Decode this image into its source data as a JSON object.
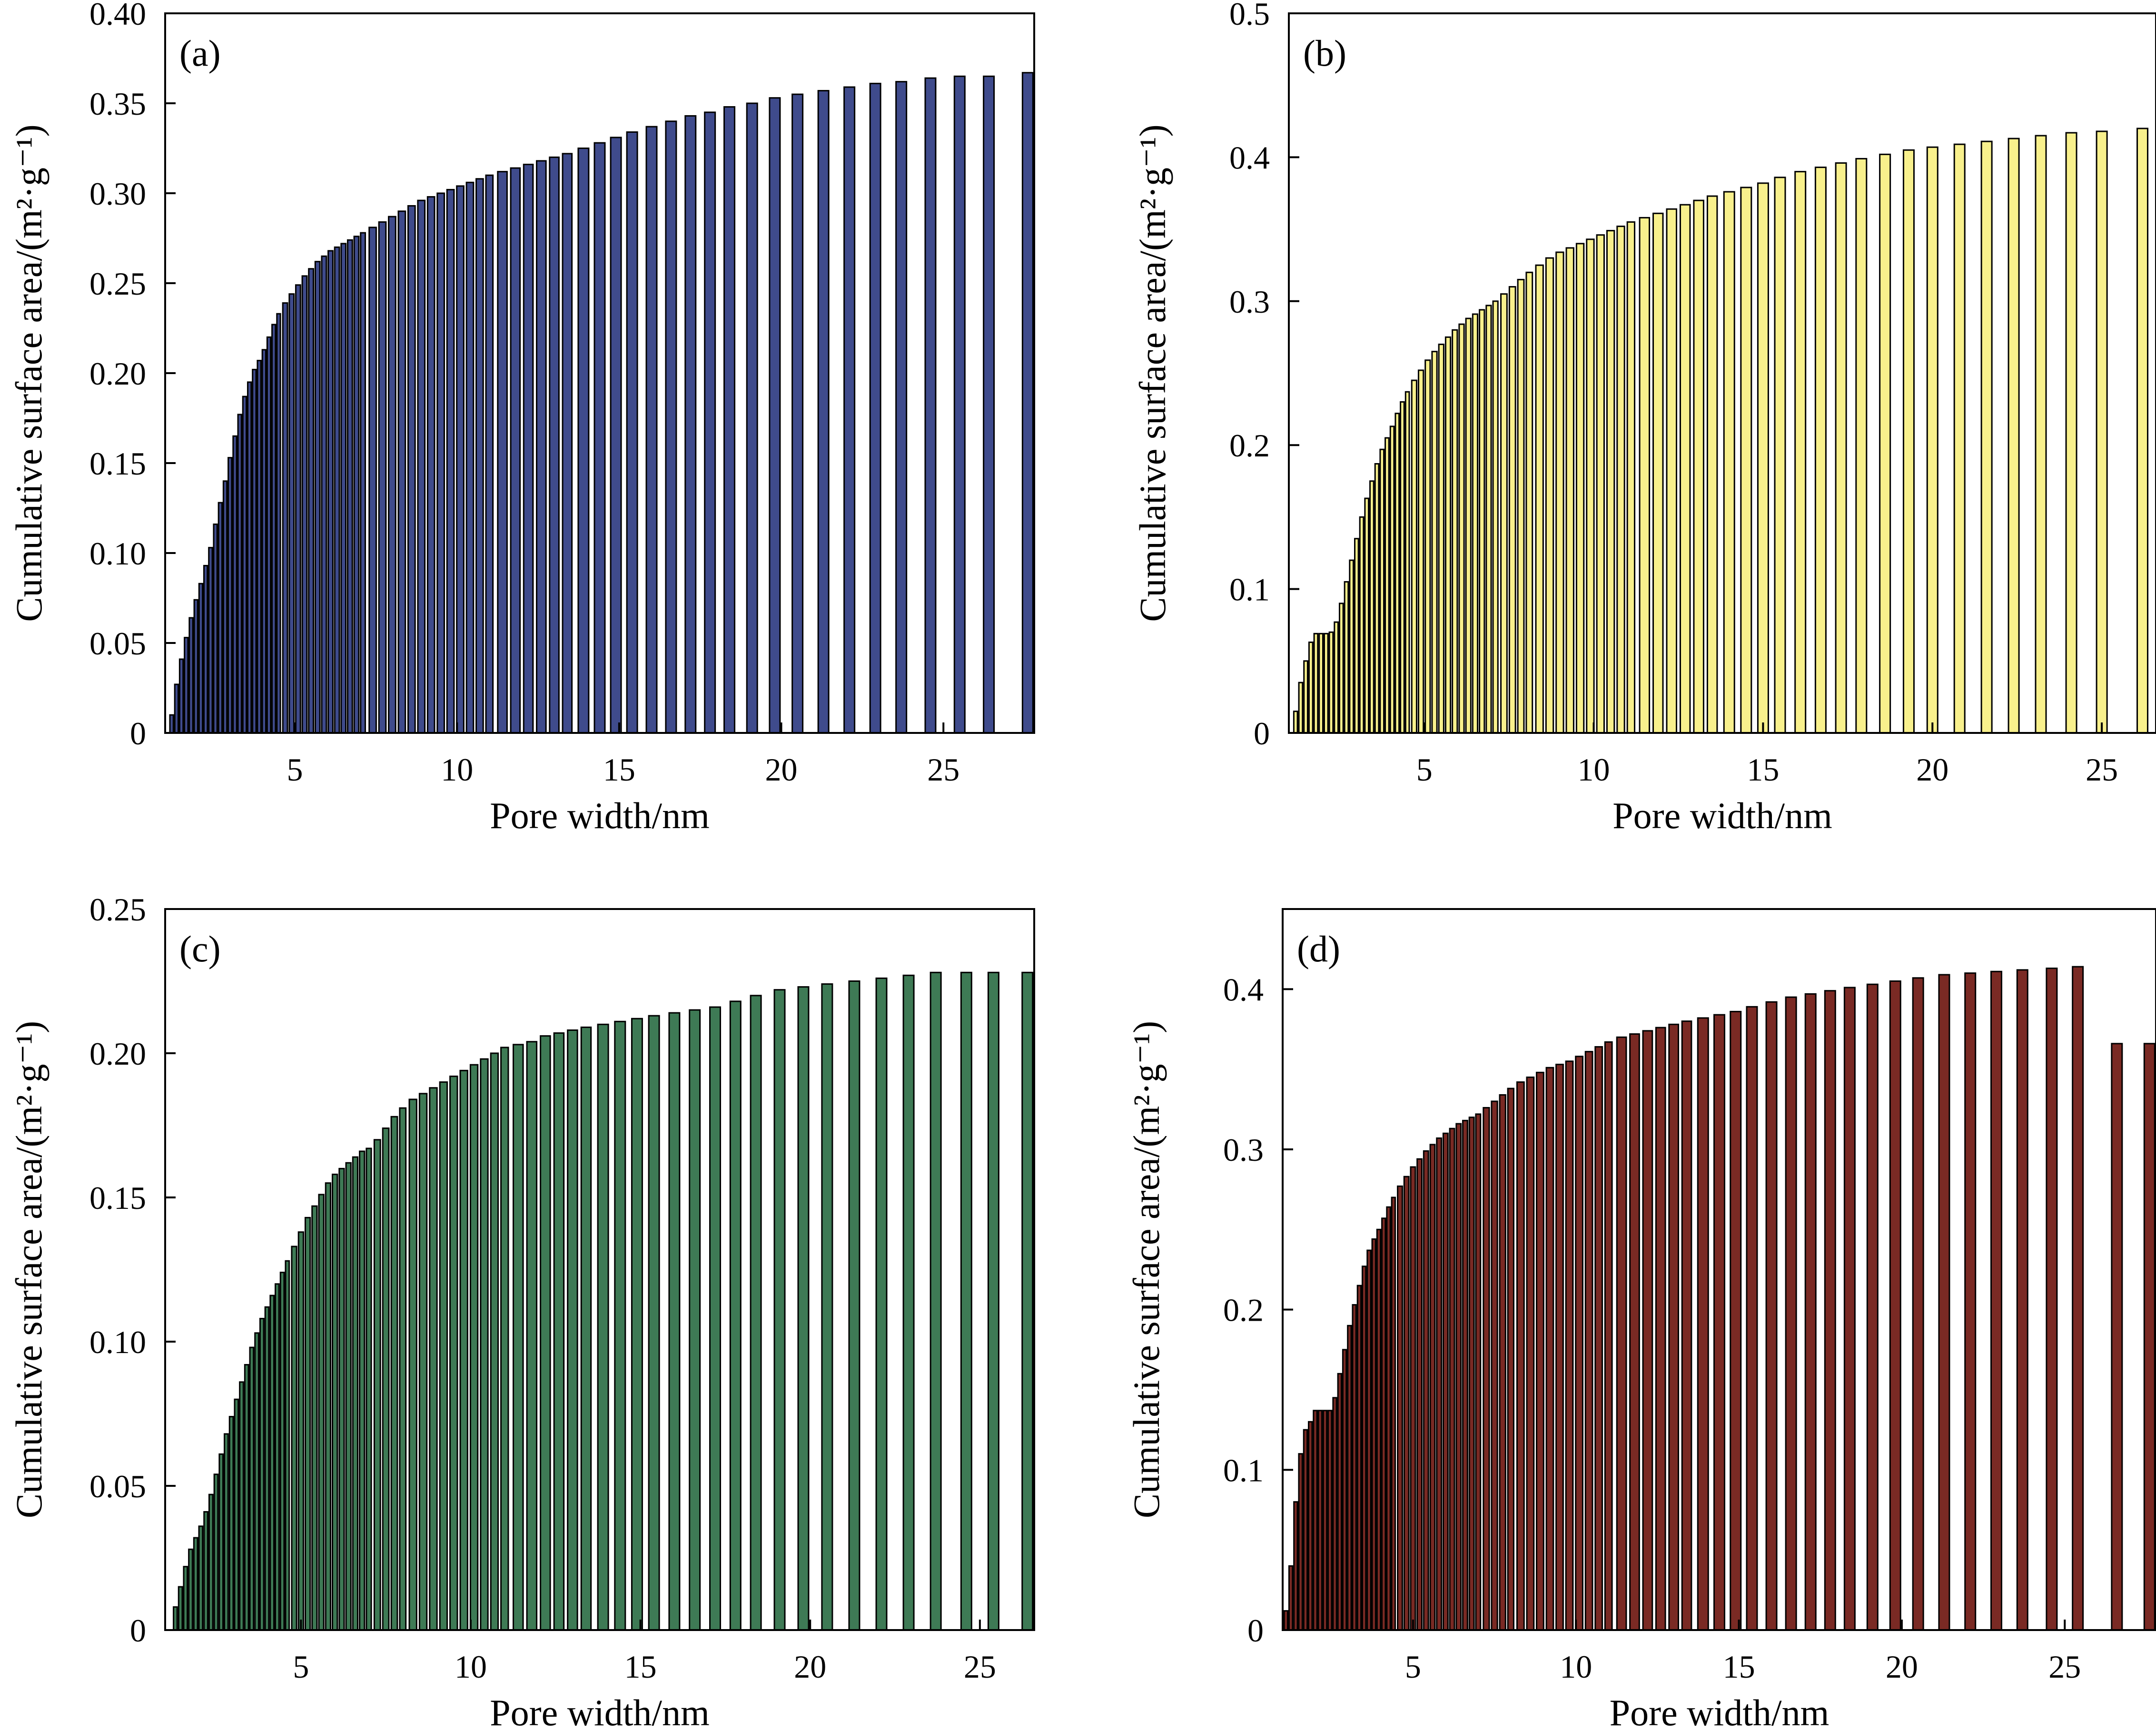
{
  "panels": [
    {
      "chart_data": {
        "type": "bar",
        "panel_label": "(a)",
        "xlabel": "Pore width/nm",
        "ylabel": "Cumulative surface area/(m²·g⁻¹)",
        "xlim": [
          1.0,
          27.8
        ],
        "ylim": [
          0,
          0.4
        ],
        "yticks": [
          0,
          0.05,
          0.1,
          0.15,
          0.2,
          0.25,
          0.3,
          0.35,
          0.4
        ],
        "ytick_labels": [
          "0",
          "0.05",
          "0.10",
          "0.15",
          "0.20",
          "0.25",
          "0.30",
          "0.35",
          "0.40"
        ],
        "xticks": [
          5,
          10,
          15,
          20,
          25
        ],
        "xtick_labels": [
          "5",
          "10",
          "15",
          "20",
          "25"
        ],
        "bar_color": "#3F4B8C",
        "x": [
          1.2,
          1.35,
          1.5,
          1.65,
          1.8,
          1.95,
          2.1,
          2.25,
          2.4,
          2.55,
          2.7,
          2.85,
          3.0,
          3.15,
          3.3,
          3.45,
          3.6,
          3.75,
          3.9,
          4.05,
          4.2,
          4.35,
          4.5,
          4.7,
          4.9,
          5.1,
          5.3,
          5.5,
          5.7,
          5.9,
          6.1,
          6.3,
          6.5,
          6.7,
          6.9,
          7.1,
          7.4,
          7.7,
          8.0,
          8.3,
          8.6,
          8.9,
          9.2,
          9.5,
          9.8,
          10.1,
          10.4,
          10.7,
          11.0,
          11.4,
          11.8,
          12.2,
          12.6,
          13.0,
          13.4,
          13.9,
          14.4,
          14.9,
          15.4,
          16.0,
          16.6,
          17.2,
          17.8,
          18.4,
          19.1,
          19.8,
          20.5,
          21.3,
          22.1,
          22.9,
          23.7,
          24.6,
          25.5,
          26.4,
          27.6
        ],
        "values": [
          0.01,
          0.027,
          0.041,
          0.053,
          0.064,
          0.074,
          0.083,
          0.093,
          0.103,
          0.116,
          0.128,
          0.14,
          0.153,
          0.165,
          0.177,
          0.187,
          0.195,
          0.202,
          0.207,
          0.213,
          0.22,
          0.227,
          0.233,
          0.239,
          0.244,
          0.249,
          0.254,
          0.258,
          0.262,
          0.265,
          0.268,
          0.27,
          0.272,
          0.274,
          0.276,
          0.278,
          0.281,
          0.284,
          0.287,
          0.29,
          0.293,
          0.296,
          0.298,
          0.3,
          0.302,
          0.304,
          0.306,
          0.308,
          0.31,
          0.312,
          0.314,
          0.316,
          0.318,
          0.32,
          0.322,
          0.325,
          0.328,
          0.331,
          0.334,
          0.337,
          0.34,
          0.343,
          0.345,
          0.348,
          0.35,
          0.353,
          0.355,
          0.357,
          0.359,
          0.361,
          0.362,
          0.364,
          0.365,
          0.365,
          0.367
        ]
      }
    },
    {
      "chart_data": {
        "type": "bar",
        "panel_label": "(b)",
        "xlabel": "Pore width/nm",
        "ylabel": "Cumulative surface area/(m²·g⁻¹)",
        "xlim": [
          1.0,
          26.6
        ],
        "ylim": [
          0,
          0.5
        ],
        "yticks": [
          0,
          0.1,
          0.2,
          0.3,
          0.4,
          0.5
        ],
        "ytick_labels": [
          "0",
          "0.1",
          "0.2",
          "0.3",
          "0.4",
          "0.5"
        ],
        "xticks": [
          5,
          10,
          15,
          20,
          25
        ],
        "xtick_labels": [
          "5",
          "10",
          "15",
          "20",
          "25"
        ],
        "bar_color": "#F8F08C",
        "x": [
          1.2,
          1.35,
          1.5,
          1.65,
          1.8,
          1.95,
          2.1,
          2.25,
          2.4,
          2.55,
          2.7,
          2.85,
          3.0,
          3.15,
          3.3,
          3.45,
          3.6,
          3.75,
          3.9,
          4.05,
          4.2,
          4.35,
          4.5,
          4.7,
          4.9,
          5.1,
          5.3,
          5.5,
          5.7,
          5.9,
          6.1,
          6.3,
          6.5,
          6.7,
          6.9,
          7.1,
          7.35,
          7.6,
          7.85,
          8.1,
          8.4,
          8.7,
          9.0,
          9.3,
          9.6,
          9.9,
          10.2,
          10.5,
          10.8,
          11.1,
          11.5,
          11.9,
          12.3,
          12.7,
          13.1,
          13.5,
          14.0,
          14.5,
          15.0,
          15.5,
          16.1,
          16.7,
          17.3,
          17.9,
          18.6,
          19.3,
          20.0,
          20.8,
          21.6,
          22.4,
          23.2,
          24.1,
          25.0,
          26.2
        ],
        "values": [
          0.015,
          0.035,
          0.05,
          0.063,
          0.069,
          0.069,
          0.069,
          0.07,
          0.077,
          0.09,
          0.105,
          0.12,
          0.135,
          0.15,
          0.163,
          0.175,
          0.187,
          0.197,
          0.205,
          0.213,
          0.222,
          0.23,
          0.237,
          0.245,
          0.252,
          0.259,
          0.265,
          0.27,
          0.275,
          0.28,
          0.284,
          0.288,
          0.291,
          0.294,
          0.297,
          0.3,
          0.305,
          0.31,
          0.315,
          0.32,
          0.325,
          0.33,
          0.334,
          0.337,
          0.34,
          0.343,
          0.346,
          0.349,
          0.352,
          0.355,
          0.358,
          0.361,
          0.364,
          0.367,
          0.37,
          0.373,
          0.376,
          0.379,
          0.382,
          0.386,
          0.39,
          0.393,
          0.396,
          0.399,
          0.402,
          0.405,
          0.407,
          0.409,
          0.411,
          0.413,
          0.415,
          0.417,
          0.418,
          0.42
        ]
      }
    },
    {
      "chart_data": {
        "type": "bar",
        "panel_label": "(c)",
        "xlabel": "Pore width/nm",
        "ylabel": "Cumulative surface area/(m²·g⁻¹)",
        "xlim": [
          1.0,
          26.6
        ],
        "ylim": [
          0,
          0.25
        ],
        "yticks": [
          0,
          0.05,
          0.1,
          0.15,
          0.2,
          0.25
        ],
        "ytick_labels": [
          "0",
          "0.05",
          "0.10",
          "0.15",
          "0.20",
          "0.25"
        ],
        "xticks": [
          5,
          10,
          15,
          20,
          25
        ],
        "xtick_labels": [
          "5",
          "10",
          "15",
          "20",
          "25"
        ],
        "bar_color": "#3E7A55",
        "x": [
          1.3,
          1.45,
          1.6,
          1.75,
          1.9,
          2.05,
          2.2,
          2.35,
          2.5,
          2.65,
          2.8,
          2.95,
          3.1,
          3.25,
          3.4,
          3.55,
          3.7,
          3.85,
          4.0,
          4.15,
          4.3,
          4.45,
          4.6,
          4.8,
          5.0,
          5.2,
          5.4,
          5.6,
          5.8,
          6.0,
          6.2,
          6.4,
          6.6,
          6.8,
          7.0,
          7.25,
          7.5,
          7.75,
          8.0,
          8.3,
          8.6,
          8.9,
          9.2,
          9.5,
          9.8,
          10.1,
          10.4,
          10.7,
          11.0,
          11.4,
          11.8,
          12.2,
          12.6,
          13.0,
          13.4,
          13.9,
          14.4,
          14.9,
          15.4,
          16.0,
          16.6,
          17.2,
          17.8,
          18.4,
          19.1,
          19.8,
          20.5,
          21.3,
          22.1,
          22.9,
          23.7,
          24.6,
          25.4,
          26.4
        ],
        "values": [
          0.008,
          0.015,
          0.022,
          0.028,
          0.032,
          0.036,
          0.041,
          0.047,
          0.054,
          0.061,
          0.068,
          0.074,
          0.08,
          0.086,
          0.092,
          0.098,
          0.103,
          0.108,
          0.112,
          0.116,
          0.12,
          0.124,
          0.128,
          0.133,
          0.138,
          0.143,
          0.147,
          0.151,
          0.155,
          0.158,
          0.16,
          0.162,
          0.164,
          0.166,
          0.167,
          0.17,
          0.174,
          0.178,
          0.181,
          0.184,
          0.186,
          0.188,
          0.19,
          0.192,
          0.194,
          0.196,
          0.198,
          0.2,
          0.202,
          0.203,
          0.204,
          0.206,
          0.207,
          0.208,
          0.209,
          0.21,
          0.211,
          0.212,
          0.213,
          0.214,
          0.215,
          0.216,
          0.218,
          0.22,
          0.222,
          0.223,
          0.224,
          0.225,
          0.226,
          0.227,
          0.228,
          0.228,
          0.228,
          0.228
        ]
      }
    },
    {
      "chart_data": {
        "type": "bar",
        "panel_label": "(d)",
        "xlabel": "Pore width/nm",
        "ylabel": "Cumulative surface area/(m²·g⁻¹)",
        "xlim": [
          1.0,
          27.8
        ],
        "ylim": [
          0,
          0.45
        ],
        "yticks": [
          0,
          0.1,
          0.2,
          0.3,
          0.4
        ],
        "ytick_labels": [
          "0",
          "0.1",
          "0.2",
          "0.3",
          "0.4"
        ],
        "xticks": [
          5,
          10,
          15,
          20,
          25
        ],
        "xtick_labels": [
          "5",
          "10",
          "15",
          "20",
          "25"
        ],
        "bar_color": "#7A2A24",
        "x": [
          1.1,
          1.25,
          1.4,
          1.55,
          1.7,
          1.85,
          2.0,
          2.15,
          2.3,
          2.45,
          2.6,
          2.75,
          2.9,
          3.05,
          3.2,
          3.35,
          3.5,
          3.65,
          3.8,
          3.95,
          4.1,
          4.25,
          4.4,
          4.6,
          4.8,
          5.0,
          5.2,
          5.4,
          5.6,
          5.8,
          6.0,
          6.2,
          6.4,
          6.6,
          6.8,
          7.0,
          7.25,
          7.5,
          7.75,
          8.0,
          8.3,
          8.6,
          8.9,
          9.2,
          9.5,
          9.8,
          10.1,
          10.4,
          10.7,
          11.0,
          11.4,
          11.8,
          12.2,
          12.6,
          13.0,
          13.4,
          13.9,
          14.4,
          14.9,
          15.4,
          16.0,
          16.6,
          17.2,
          17.8,
          18.4,
          19.1,
          19.8,
          20.5,
          21.3,
          22.1,
          22.9,
          23.7,
          24.6,
          25.4,
          26.6,
          27.6
        ],
        "values": [
          0.012,
          0.04,
          0.08,
          0.11,
          0.125,
          0.13,
          0.137,
          0.137,
          0.137,
          0.137,
          0.145,
          0.16,
          0.175,
          0.19,
          0.203,
          0.215,
          0.227,
          0.237,
          0.244,
          0.25,
          0.257,
          0.264,
          0.27,
          0.277,
          0.283,
          0.289,
          0.294,
          0.299,
          0.303,
          0.307,
          0.31,
          0.313,
          0.316,
          0.318,
          0.32,
          0.322,
          0.326,
          0.33,
          0.334,
          0.338,
          0.342,
          0.345,
          0.348,
          0.351,
          0.353,
          0.355,
          0.358,
          0.361,
          0.364,
          0.367,
          0.37,
          0.372,
          0.374,
          0.376,
          0.378,
          0.38,
          0.382,
          0.384,
          0.386,
          0.389,
          0.392,
          0.395,
          0.397,
          0.399,
          0.401,
          0.403,
          0.405,
          0.407,
          0.409,
          0.41,
          0.411,
          0.412,
          0.413,
          0.414,
          0.366,
          0.366
        ]
      }
    }
  ]
}
